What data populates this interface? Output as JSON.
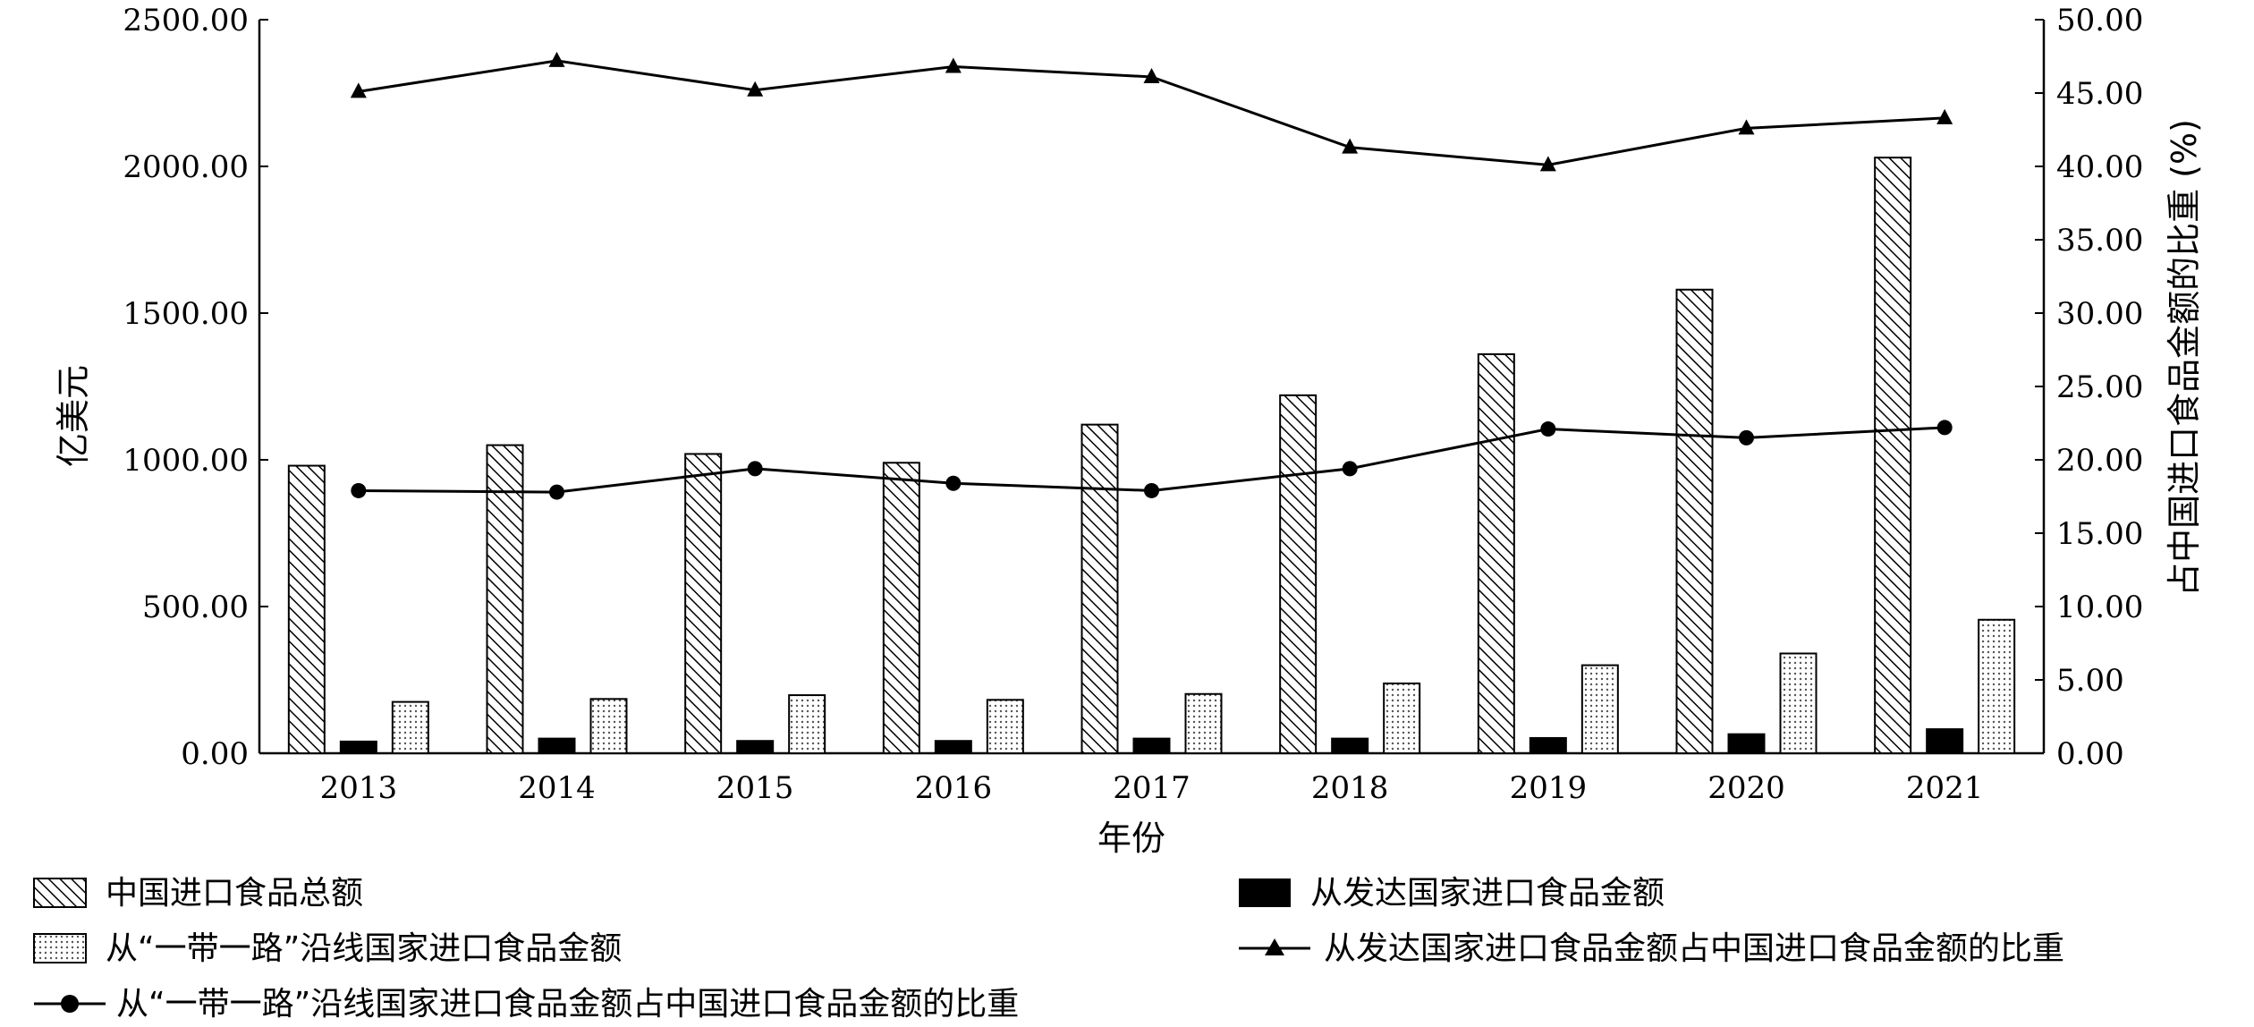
{
  "chart_data": {
    "type": "bar",
    "categories": [
      "2013",
      "2014",
      "2015",
      "2016",
      "2017",
      "2018",
      "2019",
      "2020",
      "2021"
    ],
    "xlabel": "年份",
    "ylabel": "亿美元",
    "ylabel_right": "占中国进口食品金额的比重 (%)",
    "ylim": [
      0,
      2500
    ],
    "ylim_right": [
      0,
      50
    ],
    "yticks": [
      "0.00",
      "500.00",
      "1000.00",
      "1500.00",
      "2000.00",
      "2500.00"
    ],
    "yticks_right": [
      "0.00",
      "5.00",
      "10.00",
      "15.00",
      "20.00",
      "25.00",
      "30.00",
      "35.00",
      "40.00",
      "45.00",
      "50.00"
    ],
    "series": [
      {
        "name": "中国进口食品总额",
        "kind": "bar",
        "style": "hatched",
        "values": [
          980,
          1050,
          1020,
          990,
          1120,
          1220,
          1360,
          1580,
          2030
        ]
      },
      {
        "name": "从发达国家进口食品金额",
        "kind": "bar",
        "style": "solid",
        "values": [
          40,
          50,
          42,
          42,
          50,
          50,
          52,
          65,
          82
        ]
      },
      {
        "name": "从“一带一路”沿线国家进口食品金额",
        "kind": "bar",
        "style": "dotted",
        "values": [
          175,
          185,
          198,
          182,
          202,
          238,
          300,
          340,
          455
        ]
      },
      {
        "name": "从发达国家进口食品金额占中国进口食品金额的比重",
        "kind": "line",
        "marker": "triangle",
        "axis": "right",
        "values": [
          45.1,
          47.2,
          45.2,
          46.8,
          46.1,
          41.3,
          40.1,
          42.6,
          43.3
        ]
      },
      {
        "name": "从“一带一路”沿线国家进口食品金额占中国进口食品金额的比重",
        "kind": "line",
        "marker": "circle",
        "axis": "right",
        "values": [
          17.9,
          17.8,
          19.4,
          18.4,
          17.9,
          19.4,
          22.1,
          21.5,
          22.2
        ]
      }
    ],
    "legend_position": "bottom",
    "grid": false
  }
}
